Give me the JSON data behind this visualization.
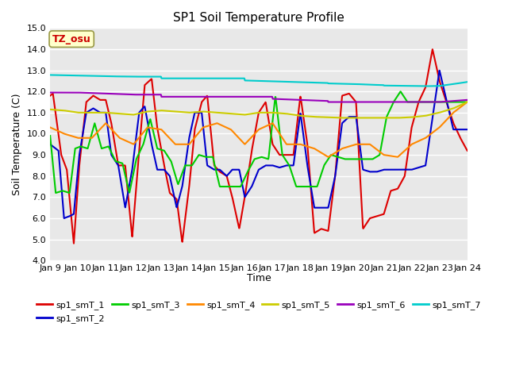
{
  "title": "SP1 Soil Temperature Profile",
  "xlabel": "Time",
  "ylabel": "Soil Temperature (C)",
  "ylim": [
    4.0,
    15.0
  ],
  "yticks": [
    4.0,
    5.0,
    6.0,
    7.0,
    8.0,
    9.0,
    10.0,
    11.0,
    12.0,
    13.0,
    14.0,
    15.0
  ],
  "xtick_labels": [
    "Jan 9",
    "Jan 10",
    "Jan 11",
    "Jan 12",
    "Jan 13",
    "Jan 14",
    "Jan 15",
    "Jan 16",
    "Jan 17",
    "Jan 18",
    "Jan 19",
    "Jan 20",
    "Jan 21",
    "Jan 22",
    "Jan 23",
    "Jan 24"
  ],
  "series_colors": [
    "#dd0000",
    "#0000cc",
    "#00cc00",
    "#ff8800",
    "#cccc00",
    "#9900bb",
    "#00cccc"
  ],
  "series_names": [
    "sp1_smT_1",
    "sp1_smT_2",
    "sp1_smT_3",
    "sp1_smT_4",
    "sp1_smT_5",
    "sp1_smT_6",
    "sp1_smT_7"
  ],
  "plot_bg": "#e8e8e8",
  "fig_bg": "#ffffff",
  "annotation_text": "TZ_osu",
  "annotation_color": "#cc0000",
  "annotation_bg": "#ffffcc",
  "annotation_border": "#999944",
  "title_fontsize": 11,
  "axis_label_fontsize": 9,
  "tick_fontsize": 8,
  "legend_fontsize": 8,
  "linewidth": 1.5
}
